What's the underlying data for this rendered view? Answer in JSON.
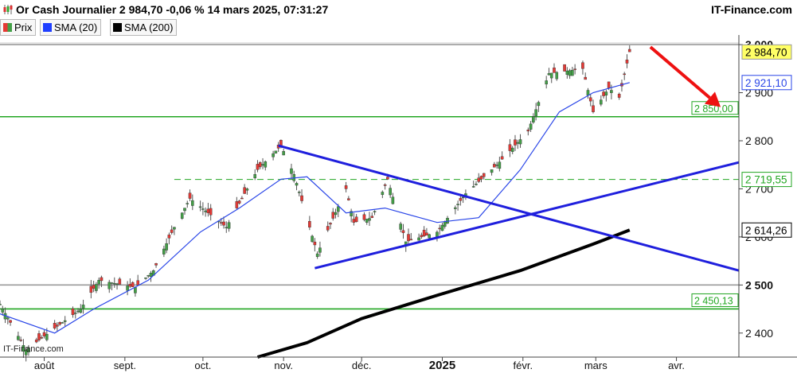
{
  "header": {
    "title": "Or Cash Journalier 2 984,70 -0,06 % 14 mars 2025, 07:31:27",
    "brand": "IT-Finance.com"
  },
  "legend": [
    {
      "label": "Prix",
      "color": "#4caf50"
    },
    {
      "label": "SMA (20)",
      "color": "#1f3fff"
    },
    {
      "label": "SMA (200)",
      "color": "#000000"
    }
  ],
  "watermark": "IT-Finance.com",
  "chart_data": {
    "type": "candlestick",
    "y_range": [
      2350,
      3020
    ],
    "y_ticks": [
      {
        "value": 3000,
        "label": "3 000",
        "bold": true
      },
      {
        "value": 2900,
        "label": "2 900",
        "bold": false
      },
      {
        "value": 2800,
        "label": "2 800",
        "bold": false
      },
      {
        "value": 2700,
        "label": "2 700",
        "bold": false
      },
      {
        "value": 2600,
        "label": "2 600",
        "bold": false
      },
      {
        "value": 2500,
        "label": "2 500",
        "bold": true
      },
      {
        "value": 2400,
        "label": "2 400",
        "bold": false
      }
    ],
    "x_ticks": [
      {
        "label": "août",
        "date": "2024-08-01",
        "bold": false
      },
      {
        "label": "sept.",
        "date": "2024-09-01",
        "bold": false
      },
      {
        "label": "oct.",
        "date": "2024-10-01",
        "bold": false
      },
      {
        "label": "nov.",
        "date": "2024-11-01",
        "bold": false
      },
      {
        "label": "déc.",
        "date": "2024-12-01",
        "bold": false
      },
      {
        "label": "2025",
        "date": "2025-01-01",
        "bold": true
      },
      {
        "label": "févr.",
        "date": "2025-02-01",
        "bold": false
      },
      {
        "label": "mars",
        "date": "2025-03-01",
        "bold": false
      },
      {
        "label": "avr.",
        "date": "2025-04-01",
        "bold": false
      }
    ],
    "x_range": [
      "2024-07-15",
      "2025-04-25"
    ],
    "price_path": [
      [
        "2024-07-15",
        2460
      ],
      [
        "2024-07-25",
        2365
      ],
      [
        "2024-08-05",
        2410
      ],
      [
        "2024-08-15",
        2450
      ],
      [
        "2024-08-22",
        2510
      ],
      [
        "2024-09-05",
        2495
      ],
      [
        "2024-09-12",
        2530
      ],
      [
        "2024-09-20",
        2620
      ],
      [
        "2024-09-26",
        2680
      ],
      [
        "2024-10-10",
        2620
      ],
      [
        "2024-10-22",
        2740
      ],
      [
        "2024-10-31",
        2790
      ],
      [
        "2024-11-05",
        2730
      ],
      [
        "2024-11-14",
        2565
      ],
      [
        "2024-11-25",
        2700
      ],
      [
        "2024-11-28",
        2630
      ],
      [
        "2024-12-05",
        2640
      ],
      [
        "2024-12-11",
        2720
      ],
      [
        "2024-12-18",
        2590
      ],
      [
        "2024-12-30",
        2610
      ],
      [
        "2025-01-10",
        2690
      ],
      [
        "2025-01-22",
        2750
      ],
      [
        "2025-02-03",
        2820
      ],
      [
        "2025-02-11",
        2940
      ],
      [
        "2025-02-24",
        2950
      ],
      [
        "2025-02-28",
        2860
      ],
      [
        "2025-03-06",
        2910
      ],
      [
        "2025-03-10",
        2890
      ],
      [
        "2025-03-14",
        2985
      ]
    ],
    "sma20": [
      [
        "2024-07-15",
        2440
      ],
      [
        "2024-08-05",
        2400
      ],
      [
        "2024-08-20",
        2450
      ],
      [
        "2024-09-10",
        2510
      ],
      [
        "2024-09-30",
        2610
      ],
      [
        "2024-10-15",
        2660
      ],
      [
        "2024-10-31",
        2720
      ],
      [
        "2024-11-10",
        2725
      ],
      [
        "2024-11-25",
        2650
      ],
      [
        "2024-12-10",
        2660
      ],
      [
        "2024-12-30",
        2630
      ],
      [
        "2025-01-15",
        2640
      ],
      [
        "2025-01-31",
        2740
      ],
      [
        "2025-02-15",
        2860
      ],
      [
        "2025-02-28",
        2900
      ],
      [
        "2025-03-14",
        2921.1
      ]
    ],
    "sma200": [
      [
        "2024-10-22",
        2350
      ],
      [
        "2024-11-10",
        2380
      ],
      [
        "2024-12-01",
        2430
      ],
      [
        "2024-12-31",
        2480
      ],
      [
        "2025-01-31",
        2530
      ],
      [
        "2025-02-28",
        2585
      ],
      [
        "2025-03-14",
        2614.26
      ]
    ],
    "levels": [
      {
        "value": 3000,
        "color": "#9a9a9a",
        "style": "solid",
        "label": ""
      },
      {
        "value": 2850,
        "color": "#22a622",
        "style": "solid",
        "label": "2 850,00"
      },
      {
        "value": 2719.55,
        "color": "#22a622",
        "style": "dashed",
        "label": "2 719,55",
        "start": "2024-09-20"
      },
      {
        "value": 2500,
        "color": "#9a9a9a",
        "style": "solid",
        "label": ""
      },
      {
        "value": 2450.13,
        "color": "#22a622",
        "style": "solid",
        "label": "2 450,13"
      }
    ],
    "trendlines": [
      {
        "name": "resistance",
        "color": "#1f1fdd",
        "from": [
          "2024-10-30",
          2790
        ],
        "to": [
          "2025-04-25",
          2530
        ]
      },
      {
        "name": "support",
        "color": "#1f1fdd",
        "from": [
          "2024-11-13",
          2535
        ],
        "to": [
          "2025-04-25",
          2755
        ]
      }
    ],
    "arrow": {
      "color": "#ee1111",
      "from": [
        "2025-03-22",
        2995
      ],
      "to": [
        "2025-04-18",
        2870
      ]
    },
    "price_tags": [
      {
        "value": 2984.7,
        "label": "2 984,70",
        "style": "yellow"
      },
      {
        "value": 2921.1,
        "label": "2 921,10",
        "style": "blue"
      },
      {
        "value": 2719.55,
        "label": "2 719,55",
        "style": "green"
      },
      {
        "value": 2614.26,
        "label": "2 614,26",
        "style": "black"
      }
    ]
  }
}
